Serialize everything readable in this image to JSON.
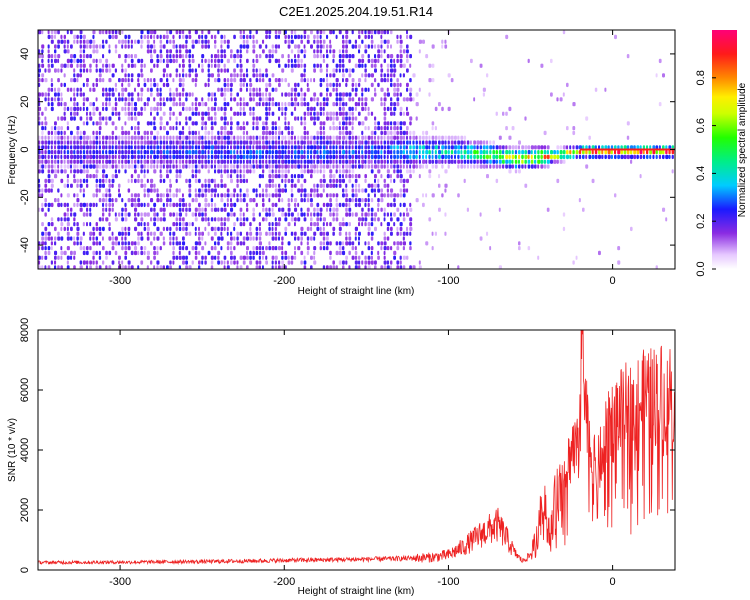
{
  "title": "C2E1.2025.204.19.51.R14",
  "chart_data": [
    {
      "type": "heatmap",
      "xlabel": "Height of straight line (km)",
      "ylabel": "Frequency (Hz)",
      "xlim": [
        -350,
        38
      ],
      "ylim": [
        -50,
        50
      ],
      "xticks": [
        -300,
        -200,
        -100,
        0
      ],
      "yticks": [
        -40,
        -20,
        0,
        20,
        40
      ],
      "colorbar": {
        "label": "Normalized spectral amplitude",
        "range": [
          0,
          1
        ],
        "ticks": [
          0.0,
          0.2,
          0.4,
          0.6,
          0.8
        ]
      },
      "ridge": {
        "description_points_x": [
          -350,
          -300,
          -250,
          -200,
          -150,
          -120,
          -100,
          -80,
          -60,
          -40,
          -20,
          0,
          38
        ],
        "center_freq": [
          0,
          0,
          0,
          -1,
          0,
          0,
          0,
          -1,
          -3,
          -2,
          0,
          0,
          0
        ],
        "peak_amplitude": [
          0.25,
          0.25,
          0.3,
          0.3,
          0.3,
          0.4,
          0.45,
          0.55,
          0.7,
          0.8,
          0.9,
          0.95,
          0.95
        ]
      }
    },
    {
      "type": "line",
      "xlabel": "Height of straight line (km)",
      "ylabel": "SNR (10 * v/v)",
      "xlim": [
        -350,
        38
      ],
      "ylim": [
        0,
        8000
      ],
      "xticks": [
        -300,
        -200,
        -100,
        0
      ],
      "yticks": [
        0,
        2000,
        4000,
        6000,
        8000
      ],
      "color": "#ee2222",
      "series": [
        {
          "x": [
            -350,
            -300,
            -250,
            -200,
            -150,
            -130,
            -110,
            -100,
            -90,
            -80,
            -70,
            -65,
            -60,
            -55,
            -50,
            -45,
            -42,
            -40,
            -38,
            -35,
            -30,
            -25,
            -20,
            -18,
            -15,
            -10,
            -5,
            0,
            10,
            20,
            30,
            38
          ],
          "y": [
            250,
            260,
            280,
            320,
            360,
            380,
            420,
            500,
            800,
            1200,
            1500,
            1100,
            600,
            300,
            500,
            1500,
            2800,
            1800,
            1200,
            2500,
            3000,
            4000,
            5000,
            6500,
            4500,
            3200,
            4200,
            5000,
            5400,
            5700,
            5900,
            6000
          ]
        }
      ]
    }
  ]
}
